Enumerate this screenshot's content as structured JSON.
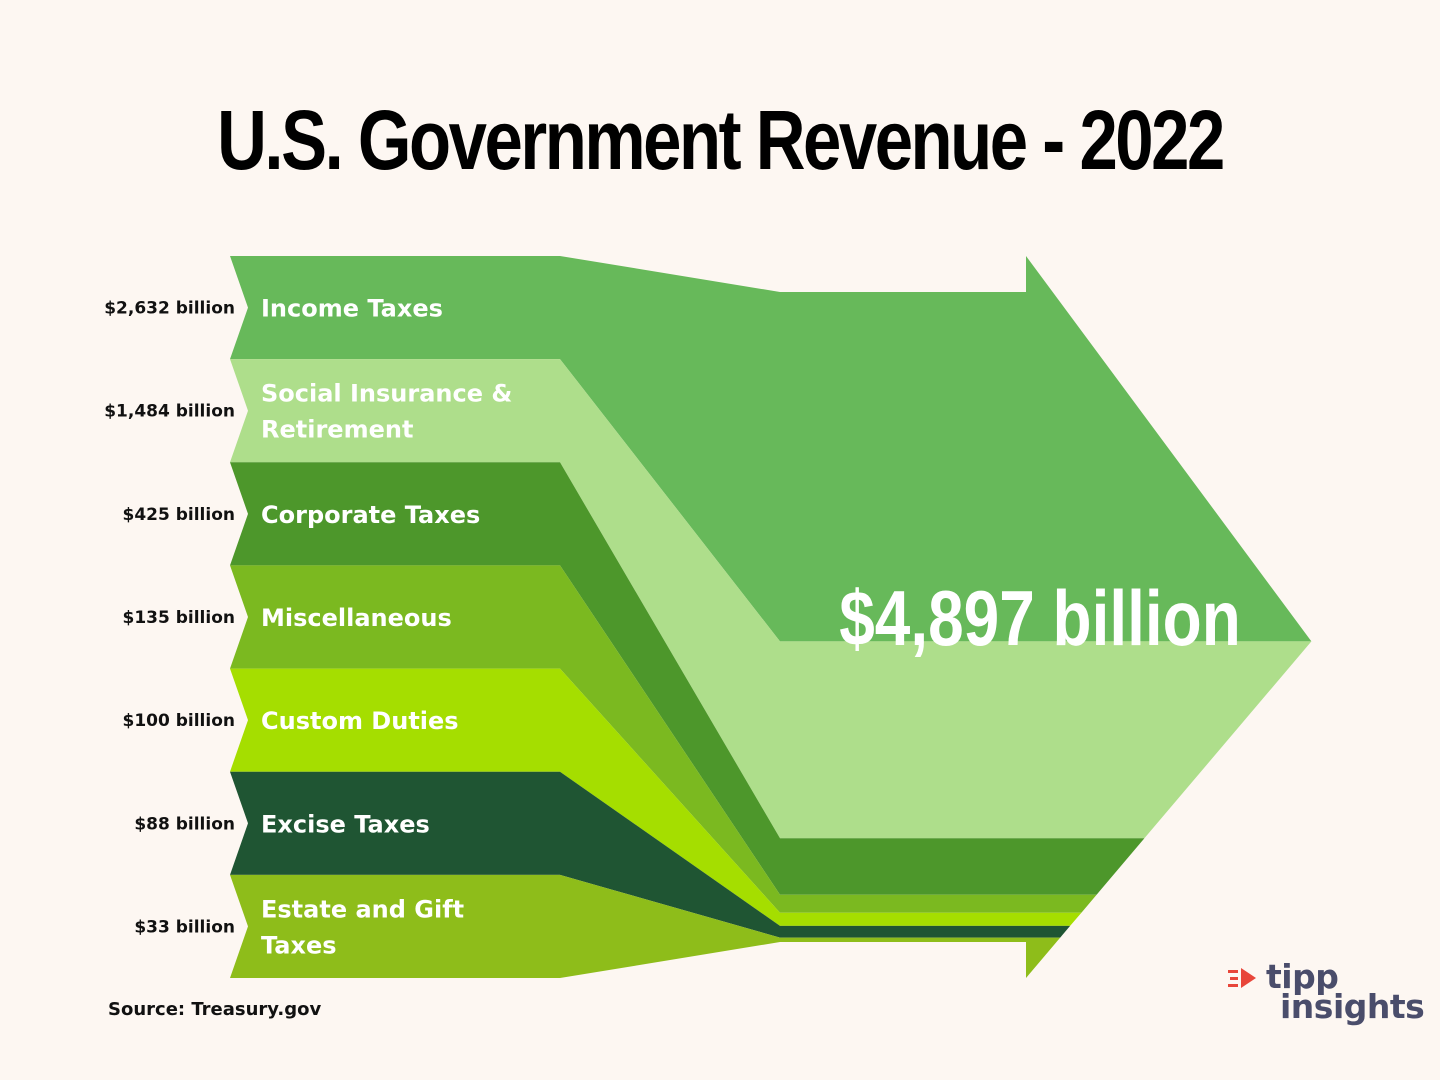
{
  "title": "U.S. Government Revenue - 2022",
  "source": "Source: Treasury.gov",
  "logo": {
    "line1": "tipp",
    "line2": "insights"
  },
  "colors": {
    "background": "#fdf7f2",
    "income": "#67b95a",
    "social": "#aede8b",
    "corporate": "#4d972b",
    "misc": "#7bb920",
    "custom": "#a5de00",
    "excise": "#1f5533",
    "estate": "#8ebd1a",
    "logo_accent": "#e8463a",
    "logo_text": "#4a4d6b"
  },
  "chart_data": {
    "type": "sankey",
    "title": "U.S. Government Revenue - 2022",
    "unit": "billion USD",
    "categories": [
      "Income Taxes",
      "Social Insurance & Retirement",
      "Corporate Taxes",
      "Miscellaneous",
      "Custom Duties",
      "Excise Taxes",
      "Estate and Gift Taxes"
    ],
    "values": [
      2632,
      1484,
      425,
      135,
      100,
      88,
      33
    ],
    "value_labels": [
      "$2,632 billion",
      "$1,484 billion",
      "$425 billion",
      "$135 billion",
      "$100 billion",
      "$88 billion",
      "$33 billion"
    ],
    "label_lines": [
      [
        "Income Taxes"
      ],
      [
        "Social Insurance &",
        "Retirement"
      ],
      [
        "Corporate Taxes"
      ],
      [
        "Miscellaneous"
      ],
      [
        "Custom Duties"
      ],
      [
        "Excise Taxes"
      ],
      [
        "Estate and Gift",
        "Taxes"
      ]
    ],
    "series_colors": [
      "#67b95a",
      "#aede8b",
      "#4d972b",
      "#7bb920",
      "#a5de00",
      "#1f5533",
      "#8ebd1a"
    ],
    "total": 4897,
    "total_label": "$4,897 billion"
  }
}
